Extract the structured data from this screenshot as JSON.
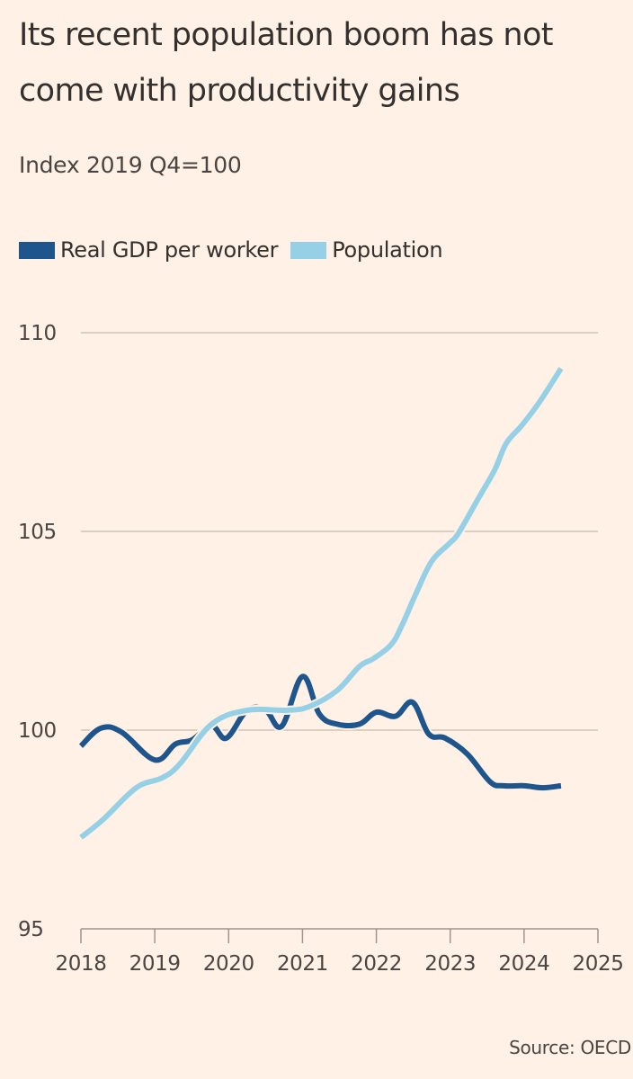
{
  "title": "Its recent population boom has not come with productivity gains",
  "subtitle": "Index 2019 Q4=100",
  "source": "Source: OECD",
  "colors": {
    "background": "#FFF1E5",
    "gdp": "#1E558C",
    "population": "#96D0E6",
    "gridline": "#CFC4BA",
    "axis": "#9E958E"
  },
  "chart_data": {
    "type": "line",
    "title": "Its recent population boom has not come with productivity gains",
    "subtitle": "Index 2019 Q4=100",
    "xlabel": "",
    "ylabel": "",
    "xlim": [
      2018,
      2025
    ],
    "ylim": [
      95,
      110
    ],
    "x_ticks": [
      "2018",
      "2019",
      "2020",
      "2021",
      "2022",
      "2023",
      "2024",
      "2025"
    ],
    "y_ticks": [
      "95",
      "100",
      "105",
      "110"
    ],
    "grid": true,
    "legend_position": "top-left",
    "series": [
      {
        "name": "Real GDP per worker",
        "color": "#1E558C",
        "x": [
          2018.0,
          2018.27,
          2018.55,
          2019.0,
          2019.28,
          2019.5,
          2019.77,
          2019.97,
          2020.25,
          2020.5,
          2020.72,
          2021.0,
          2021.23,
          2021.47,
          2021.77,
          2022.0,
          2022.26,
          2022.49,
          2022.71,
          2022.93,
          2023.23,
          2023.54,
          2023.72,
          2024.0,
          2024.25,
          2024.5
        ],
        "values": [
          99.6,
          100.05,
          99.95,
          99.25,
          99.65,
          99.75,
          100.1,
          99.8,
          100.5,
          100.5,
          100.1,
          101.35,
          100.4,
          100.15,
          100.15,
          100.45,
          100.35,
          100.7,
          99.9,
          99.8,
          99.4,
          98.7,
          98.6,
          98.6,
          98.55,
          98.6
        ]
      },
      {
        "name": "Population",
        "color": "#96D0E6",
        "x": [
          2018.0,
          2018.3,
          2018.75,
          2019.1,
          2019.34,
          2019.77,
          2020.25,
          2020.8,
          2021.1,
          2021.47,
          2021.77,
          2021.96,
          2022.2,
          2022.35,
          2022.54,
          2022.75,
          2022.99,
          2023.11,
          2023.39,
          2023.6,
          2023.76,
          2023.97,
          2024.21,
          2024.5
        ],
        "values": [
          97.3,
          97.75,
          98.55,
          98.8,
          99.15,
          100.15,
          100.5,
          100.5,
          100.6,
          101.0,
          101.6,
          101.8,
          102.15,
          102.65,
          103.45,
          104.25,
          104.7,
          104.95,
          105.86,
          106.54,
          107.22,
          107.67,
          108.26,
          109.1
        ]
      }
    ]
  }
}
